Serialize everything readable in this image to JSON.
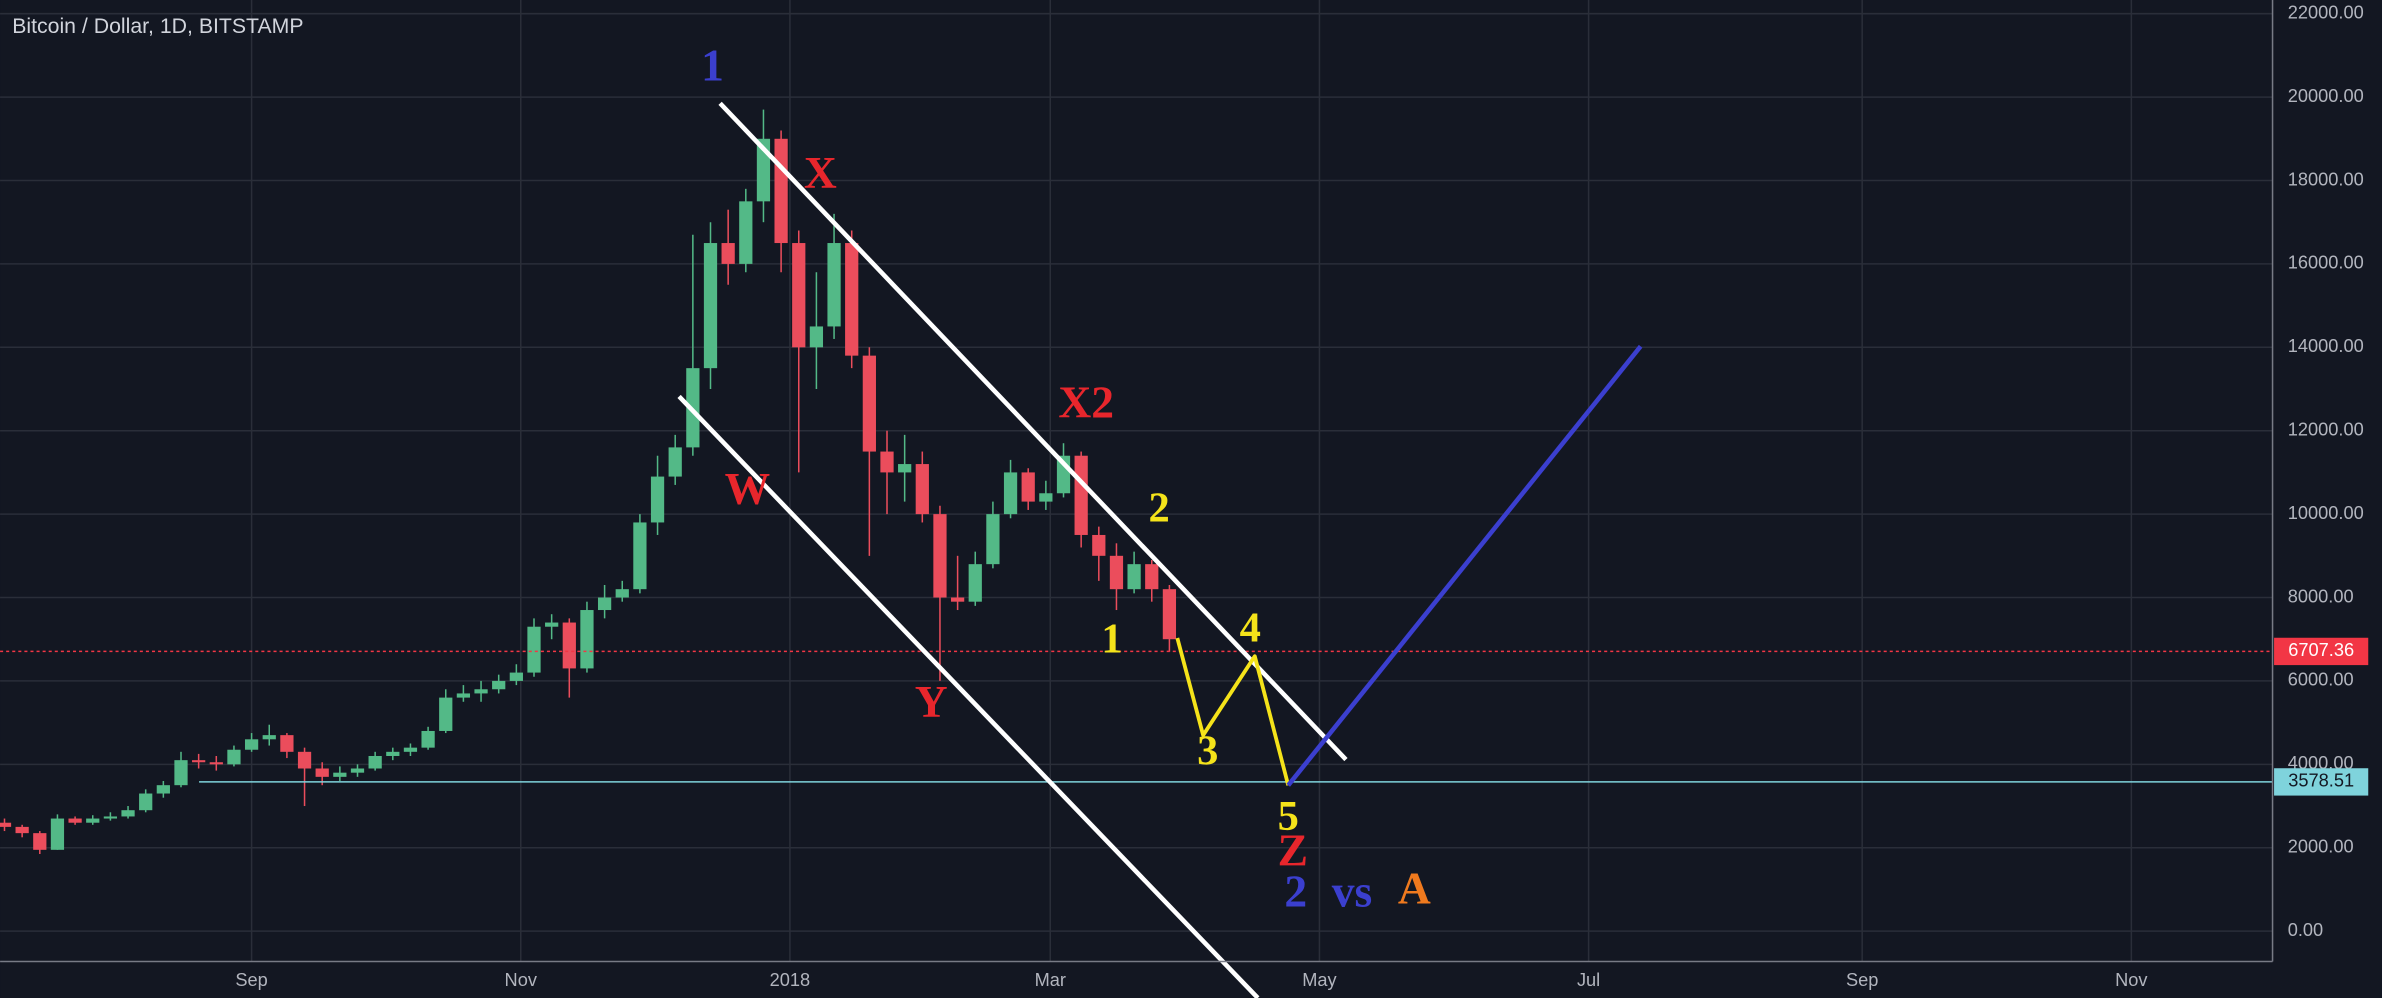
{
  "chart_data": {
    "type": "candlestick",
    "title": "Bitcoin / Dollar, 1D, BITSTAMP",
    "x": [
      -56,
      -52,
      -48,
      -44,
      -40,
      -36,
      -32,
      -28,
      -24,
      -20,
      -16,
      -12,
      -8,
      -4,
      0,
      4,
      8,
      12,
      16,
      20,
      24,
      28,
      32,
      36,
      40,
      44,
      48,
      52,
      56,
      60,
      64,
      68,
      72,
      76,
      80,
      84,
      88,
      92,
      96,
      100,
      104,
      108,
      112,
      116,
      120,
      124,
      128,
      132,
      136,
      140,
      144,
      148,
      152,
      156,
      160,
      164,
      168,
      172,
      176,
      180,
      184,
      188,
      192,
      196,
      200,
      204,
      208
    ],
    "open": [
      2600,
      2500,
      2350,
      1950,
      2700,
      2600,
      2700,
      2750,
      2900,
      3300,
      3500,
      4100,
      4050,
      4000,
      4350,
      4600,
      4700,
      4300,
      3900,
      3700,
      3800,
      3900,
      4200,
      4300,
      4400,
      4800,
      5600,
      5700,
      5800,
      6000,
      6200,
      7300,
      7400,
      6300,
      7700,
      8000,
      8200,
      9800,
      10900,
      11600,
      13500,
      16500,
      16000,
      17500,
      19000,
      16500,
      14000,
      14500,
      16500,
      13800,
      11500,
      11000,
      11200,
      10000,
      8000,
      7900,
      8800,
      10000,
      11000,
      10300,
      10500,
      11400,
      9500,
      9000,
      8200,
      8800,
      8200
    ],
    "high": [
      2700,
      2550,
      2400,
      2800,
      2750,
      2780,
      2850,
      3000,
      3400,
      3600,
      4300,
      4250,
      4200,
      4450,
      4750,
      4950,
      4750,
      4400,
      4050,
      3950,
      4000,
      4300,
      4400,
      4500,
      4900,
      5800,
      5900,
      6000,
      6150,
      6400,
      7500,
      7600,
      7500,
      7900,
      8300,
      8400,
      10000,
      11400,
      11900,
      16700,
      17000,
      17300,
      17800,
      19700,
      19200,
      16800,
      15800,
      17200,
      16800,
      14000,
      12000,
      11900,
      11500,
      10200,
      9000,
      9100,
      10300,
      11300,
      11100,
      10800,
      11700,
      11500,
      9700,
      9300,
      9100,
      8900,
      8300
    ],
    "low": [
      2400,
      2250,
      1850,
      1950,
      2550,
      2550,
      2650,
      2700,
      2850,
      3200,
      3450,
      3900,
      3850,
      3950,
      4300,
      4450,
      4150,
      3000,
      3500,
      3600,
      3700,
      3850,
      4100,
      4200,
      4350,
      4750,
      5500,
      5500,
      5700,
      5900,
      6100,
      7000,
      5600,
      6200,
      7500,
      7900,
      8100,
      9500,
      10700,
      11400,
      13000,
      15500,
      15800,
      17000,
      15800,
      11000,
      13000,
      14200,
      13500,
      9000,
      10000,
      10300,
      9800,
      6000,
      7700,
      7800,
      8700,
      9900,
      10100,
      10100,
      10400,
      9200,
      8400,
      7700,
      8100,
      7900,
      6700
    ],
    "close": [
      2500,
      2350,
      1950,
      2700,
      2600,
      2700,
      2750,
      2900,
      3300,
      3500,
      4100,
      4050,
      4000,
      4350,
      4600,
      4700,
      4300,
      3900,
      3700,
      3800,
      3900,
      4200,
      4300,
      4400,
      4800,
      5600,
      5700,
      5800,
      6000,
      6200,
      7300,
      7400,
      6300,
      7700,
      8000,
      8200,
      9800,
      10900,
      11600,
      13500,
      16500,
      16000,
      17500,
      19000,
      16500,
      14000,
      14500,
      16500,
      13800,
      11500,
      11000,
      11200,
      10000,
      8000,
      7900,
      8800,
      10000,
      11000,
      10300,
      10500,
      11400,
      9500,
      9000,
      8200,
      8800,
      8200,
      7000
    ],
    "up_color": "#53b987",
    "down_color": "#eb4d5c",
    "xlim": [
      -57,
      458
    ],
    "xticks": [
      {
        "value": 0,
        "label": "Sep"
      },
      {
        "value": 61,
        "label": "Nov"
      },
      {
        "value": 122,
        "label": "2018"
      },
      {
        "value": 181,
        "label": "Mar"
      },
      {
        "value": 242,
        "label": "May"
      },
      {
        "value": 303,
        "label": "Jul"
      },
      {
        "value": 365,
        "label": "Sep"
      },
      {
        "value": 426,
        "label": "Nov"
      }
    ],
    "ylim": [
      -729,
      22328
    ],
    "yticks": [
      {
        "value": 0,
        "label": "0.00"
      },
      {
        "value": 2000,
        "label": "2000.00"
      },
      {
        "value": 4000,
        "label": "4000.00"
      },
      {
        "value": 6000,
        "label": "6000.00"
      },
      {
        "value": 8000,
        "label": "8000.00"
      },
      {
        "value": 10000,
        "label": "10000.00"
      },
      {
        "value": 12000,
        "label": "12000.00"
      },
      {
        "value": 14000,
        "label": "14000.00"
      },
      {
        "value": 16000,
        "label": "16000.00"
      },
      {
        "value": 18000,
        "label": "18000.00"
      },
      {
        "value": 20000,
        "label": "20000.00"
      },
      {
        "value": 22000,
        "label": "22000.00"
      }
    ],
    "grid": true,
    "price_lines": [
      {
        "value": 6707.36,
        "color": "#f23645"
      },
      {
        "value": 3578.51,
        "color": "#7fd3dc"
      }
    ],
    "annotations": [
      {
        "text": "1",
        "color": "#3b3fcf"
      },
      {
        "text": "X",
        "color": "#e8262c"
      },
      {
        "text": "X2",
        "color": "#e8262c"
      },
      {
        "text": "W",
        "color": "#e8262c"
      },
      {
        "text": "Y",
        "color": "#e8262c"
      },
      {
        "text": "Z",
        "color": "#e8262c"
      },
      {
        "text": "2",
        "color": "#3b3fcf"
      },
      {
        "text": "vs",
        "color": "#3b3fcf"
      },
      {
        "text": "A",
        "color": "#f07a1e"
      },
      {
        "text": "1",
        "color": "#f5e31a"
      },
      {
        "text": "2",
        "color": "#f5e31a"
      },
      {
        "text": "3",
        "color": "#f5e31a"
      },
      {
        "text": "4",
        "color": "#f5e31a"
      },
      {
        "text": "5",
        "color": "#f5e31a"
      }
    ]
  }
}
